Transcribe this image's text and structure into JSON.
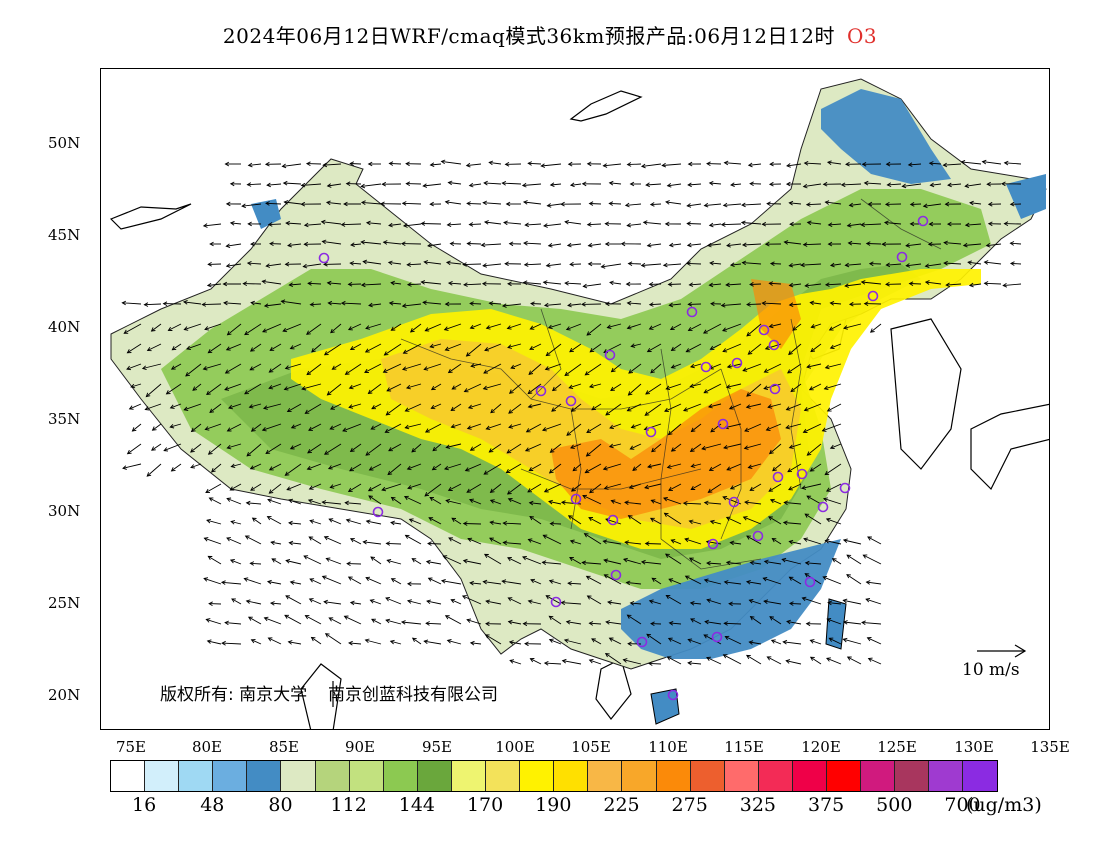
{
  "title": "2024年06月12日WRF/cmaq模式36km预报产品:06月12日12时",
  "species": "O3",
  "lat_labels": [
    "50N",
    "45N",
    "40N",
    "35N",
    "30N",
    "25N",
    "20N"
  ],
  "lon_labels": [
    "75E",
    "80E",
    "85E",
    "90E",
    "95E",
    "100E",
    "105E",
    "110E",
    "115E",
    "120E",
    "125E",
    "130E",
    "135E"
  ],
  "colorbar": {
    "colors": [
      "#ffffff",
      "#d2effb",
      "#9fd9f3",
      "#6baee0",
      "#438cc4",
      "#dde9c3",
      "#b5d47c",
      "#c2e17f",
      "#8cc951",
      "#6aa73c",
      "#eef470",
      "#f3e25a",
      "#fff200",
      "#ffe000",
      "#f8b746",
      "#f8a729",
      "#fb8a09",
      "#ed5f2e",
      "#ff6b6b",
      "#f32b56",
      "#ef0048",
      "#ff0000",
      "#d01a7e",
      "#a8365e",
      "#9f3ad0",
      "#8b2be2"
    ],
    "labels": [
      "16",
      "48",
      "80",
      "112",
      "144",
      "170",
      "190",
      "225",
      "275",
      "325",
      "375",
      "500",
      "700"
    ],
    "unit": "(ug/m3)"
  },
  "copyright": {
    "prefix": "版权所有:",
    "org1": "南京大学",
    "org2": "南京创蓝科技有限公司"
  },
  "wind_reference": "10 m/s",
  "palette": {
    "background": "#ffffff",
    "low_blue": "#438cc4",
    "green": "#8cc951",
    "light_green": "#dde9c3",
    "yellow": "#fff200",
    "orange": "#fb8a09",
    "marker": "#8b2be2"
  }
}
